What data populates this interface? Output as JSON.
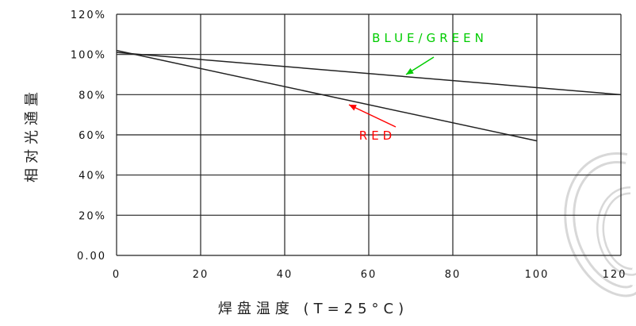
{
  "chart_data": {
    "type": "line",
    "xlabel": "焊盘温度 (T=25°C)",
    "ylabel": "相对光通量",
    "xlim": [
      0,
      120
    ],
    "ylim": [
      0,
      120
    ],
    "x_ticks": [
      "0",
      "20",
      "40",
      "60",
      "80",
      "100",
      "120"
    ],
    "y_ticks": [
      "0.00",
      "20%",
      "40%",
      "60%",
      "80%",
      "100%",
      "120%"
    ],
    "grid": true,
    "series": [
      {
        "name": "BLUE/GREEN",
        "color": "#00cc00",
        "x": [
          0,
          120
        ],
        "y": [
          101,
          80
        ]
      },
      {
        "name": "RED",
        "color": "#ff0000",
        "x": [
          0,
          100
        ],
        "y": [
          102,
          57
        ]
      }
    ]
  },
  "watermark": {
    "icon": "c-swirl-logo",
    "color": "#cfcfcf"
  }
}
